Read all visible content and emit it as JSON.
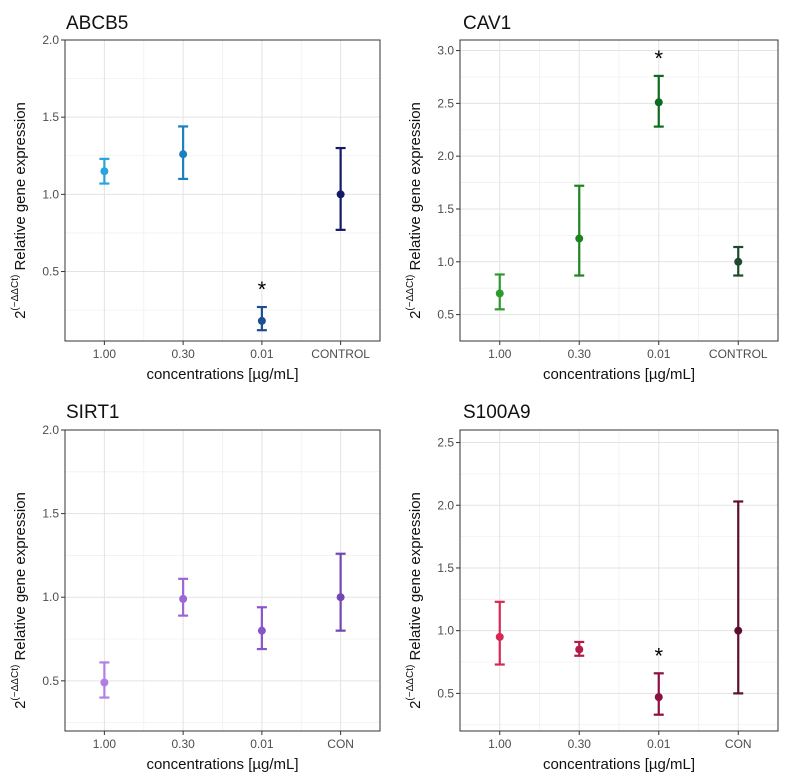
{
  "chart_data": [
    {
      "type": "errorbar",
      "title": "ABCB5",
      "xlabel": "concentrations [µg/mL]",
      "ylabel": "Relative gene expression",
      "ylabel_prefix": "2",
      "ylabel_sup": "(−ΔΔCt)",
      "ylim": [
        0.05,
        2.0
      ],
      "yticks": [
        0.5,
        1.0,
        1.5,
        2.0
      ],
      "ytick_labels": [
        "0.5",
        "1.0",
        "1.5",
        "2.0"
      ],
      "categories": [
        "1.00",
        "0.30",
        "0.01",
        "CONTROL"
      ],
      "points": [
        {
          "mean": 1.15,
          "low": 1.07,
          "high": 1.23,
          "color": "#29a3db",
          "sig": ""
        },
        {
          "mean": 1.26,
          "low": 1.1,
          "high": 1.44,
          "color": "#1a7fbf",
          "sig": ""
        },
        {
          "mean": 0.18,
          "low": 0.12,
          "high": 0.27,
          "color": "#1b4f8f",
          "sig": "*"
        },
        {
          "mean": 1.0,
          "low": 0.77,
          "high": 1.3,
          "color": "#151a66",
          "sig": ""
        }
      ]
    },
    {
      "type": "errorbar",
      "title": "CAV1",
      "xlabel": "concentrations [µg/mL]",
      "ylabel": "Relative gene expression",
      "ylabel_prefix": "2",
      "ylabel_sup": "(−ΔΔCt)",
      "ylim": [
        0.25,
        3.1
      ],
      "yticks": [
        0.5,
        1.0,
        1.5,
        2.0,
        2.5,
        3.0
      ],
      "ytick_labels": [
        "0.5",
        "1.0",
        "1.5",
        "2.0",
        "2.5",
        "3.0"
      ],
      "categories": [
        "1.00",
        "0.30",
        "0.01",
        "CONTROL"
      ],
      "points": [
        {
          "mean": 0.7,
          "low": 0.55,
          "high": 0.88,
          "color": "#2e9a2e",
          "sig": ""
        },
        {
          "mean": 1.22,
          "low": 0.87,
          "high": 1.72,
          "color": "#1f841f",
          "sig": ""
        },
        {
          "mean": 2.51,
          "low": 2.28,
          "high": 2.76,
          "color": "#0c6b1c",
          "sig": "*"
        },
        {
          "mean": 1.0,
          "low": 0.87,
          "high": 1.14,
          "color": "#1c4a2a",
          "sig": ""
        }
      ]
    },
    {
      "type": "errorbar",
      "title": "SIRT1",
      "xlabel": "concentrations [µg/mL]",
      "ylabel": "Relative gene expression",
      "ylabel_prefix": "2",
      "ylabel_sup": "(−ΔΔCt)",
      "ylim": [
        0.2,
        2.0
      ],
      "yticks": [
        0.5,
        1.0,
        1.5,
        2.0
      ],
      "ytick_labels": [
        "0.5",
        "1.0",
        "1.5",
        "2.0"
      ],
      "categories": [
        "1.00",
        "0.30",
        "0.01",
        "CON"
      ],
      "points": [
        {
          "mean": 0.49,
          "low": 0.4,
          "high": 0.61,
          "color": "#b27ee6",
          "sig": ""
        },
        {
          "mean": 0.99,
          "low": 0.89,
          "high": 1.11,
          "color": "#9d66d8",
          "sig": ""
        },
        {
          "mean": 0.8,
          "low": 0.69,
          "high": 0.94,
          "color": "#8a55c8",
          "sig": ""
        },
        {
          "mean": 1.0,
          "low": 0.8,
          "high": 1.26,
          "color": "#7347b3",
          "sig": ""
        }
      ]
    },
    {
      "type": "errorbar",
      "title": "S100A9",
      "xlabel": "concentrations [µg/mL]",
      "ylabel": "Relative gene expression",
      "ylabel_prefix": "2",
      "ylabel_sup": "(−ΔΔCt)",
      "ylim": [
        0.2,
        2.6
      ],
      "yticks": [
        0.5,
        1.0,
        1.5,
        2.0,
        2.5
      ],
      "ytick_labels": [
        "0.5",
        "1.0",
        "1.5",
        "2.0",
        "2.5"
      ],
      "categories": [
        "1.00",
        "0.30",
        "0.01",
        "CON"
      ],
      "points": [
        {
          "mean": 0.95,
          "low": 0.73,
          "high": 1.23,
          "color": "#d42a55",
          "sig": ""
        },
        {
          "mean": 0.85,
          "low": 0.8,
          "high": 0.91,
          "color": "#b01d48",
          "sig": ""
        },
        {
          "mean": 0.47,
          "low": 0.33,
          "high": 0.66,
          "color": "#8a1140",
          "sig": "*"
        },
        {
          "mean": 1.0,
          "low": 0.5,
          "high": 2.03,
          "color": "#5e0f2e",
          "sig": ""
        }
      ]
    }
  ]
}
